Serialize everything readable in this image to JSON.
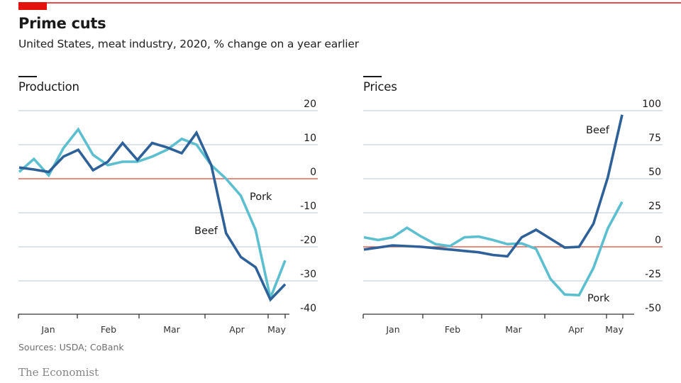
{
  "header": {
    "title": "Prime cuts",
    "subtitle": "United States, meat industry, 2020, % change on a year earlier"
  },
  "footer": {
    "source": "Sources: USDA; CoBank",
    "brand": "The Economist"
  },
  "colors": {
    "beef": "#2e6199",
    "pork": "#5bbfd0",
    "zero_line": "#d9463c",
    "grid": "#b9c4cf",
    "accent": "#e3120b"
  },
  "chart_data": [
    {
      "type": "line",
      "title": "Production",
      "xlabel": "",
      "ylabel": "% change on a year earlier",
      "x_ticks": [
        "Jan",
        "Feb",
        "Mar",
        "Apr",
        "May"
      ],
      "y_ticks": [
        20,
        10,
        0,
        -10,
        -20,
        -30,
        -40
      ],
      "y_tick_labels": [
        "20",
        "10",
        "0",
        "-10",
        "-20",
        "-30",
        "-40"
      ],
      "ylim": [
        -40,
        20
      ],
      "grid": true,
      "series": [
        {
          "name": "Beef",
          "label": "Beef",
          "values": [
            3.3,
            2.7,
            2.0,
            6.5,
            8.5,
            2.5,
            5.0,
            10.5,
            5.5,
            10.5,
            9.2,
            7.5,
            13.5,
            4.0,
            -16.0,
            -23.0,
            -26.0,
            -35.5,
            -31.0
          ]
        },
        {
          "name": "Pork",
          "label": "Pork",
          "values": [
            2.0,
            5.8,
            1.0,
            9.0,
            14.5,
            7.0,
            4.0,
            5.0,
            5.0,
            6.5,
            8.5,
            11.7,
            10.0,
            4.0,
            0.0,
            -5.0,
            -15.0,
            -35.0,
            -24.0
          ]
        }
      ]
    },
    {
      "type": "line",
      "title": "Prices",
      "xlabel": "",
      "ylabel": "% change on a year earlier",
      "x_ticks": [
        "Jan",
        "Feb",
        "Mar",
        "Apr",
        "May"
      ],
      "y_ticks": [
        100,
        75,
        50,
        25,
        0,
        -25,
        -50
      ],
      "y_tick_labels": [
        "100",
        "75",
        "50",
        "25",
        "0",
        "-25",
        "-50"
      ],
      "ylim": [
        -50,
        100
      ],
      "grid": true,
      "series": [
        {
          "name": "Beef",
          "label": "Beef",
          "values": [
            -2.0,
            -0.5,
            1.0,
            0.5,
            0.0,
            -1.0,
            -2.0,
            -3.0,
            -4.0,
            -6.0,
            -7.0,
            7.0,
            12.5,
            6.0,
            -0.5,
            0.0,
            17.0,
            51.0,
            97.0
          ]
        },
        {
          "name": "Pork",
          "label": "Pork",
          "values": [
            7.0,
            5.0,
            7.0,
            14.0,
            7.5,
            2.0,
            0.5,
            7.0,
            7.5,
            5.0,
            2.0,
            2.5,
            -1.5,
            -23.5,
            -35.0,
            -35.5,
            -15.5,
            13.5,
            33.0
          ]
        }
      ]
    }
  ]
}
